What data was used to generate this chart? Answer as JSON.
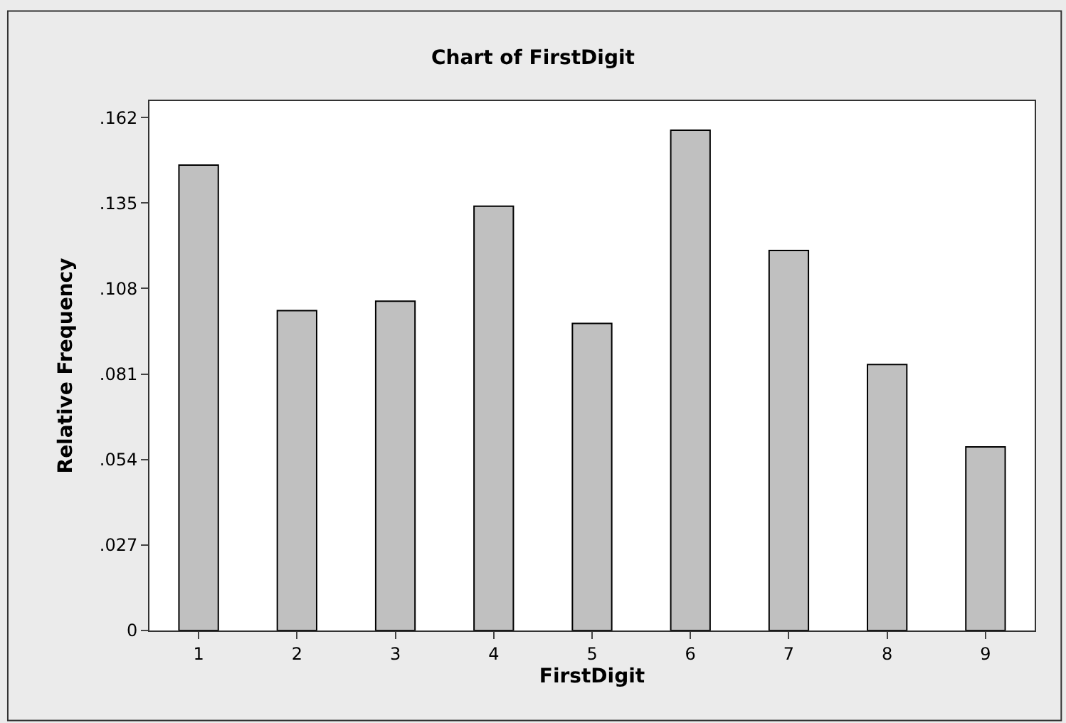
{
  "chart_data": {
    "type": "bar",
    "title": "Chart of FirstDigit",
    "xlabel": "FirstDigit",
    "ylabel": "Relative Frequency",
    "categories": [
      "1",
      "2",
      "3",
      "4",
      "5",
      "6",
      "7",
      "8",
      "9"
    ],
    "values": [
      0.147,
      0.101,
      0.104,
      0.134,
      0.097,
      0.158,
      0.12,
      0.084,
      0.058
    ],
    "color": "#c0c0c0",
    "ylim": [
      0,
      0.1672
    ],
    "yticks": [
      0,
      {
        "value": 0.027,
        "label": ".027"
      },
      {
        "value": 0.054,
        "label": ".054"
      },
      {
        "value": 0.081,
        "label": ".081"
      },
      {
        "value": 0.108,
        "label": ".108"
      },
      {
        "value": 0.135,
        "label": ".135"
      },
      {
        "value": 0.162,
        "label": ".162"
      }
    ],
    "legend": false
  }
}
